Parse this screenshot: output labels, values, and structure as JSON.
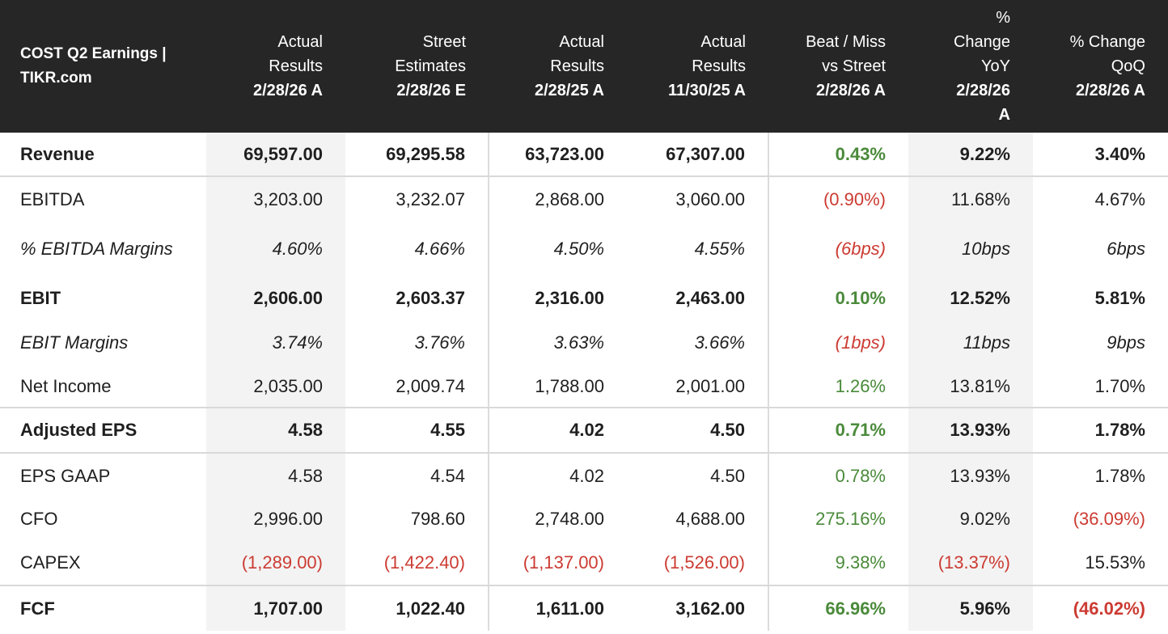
{
  "colors": {
    "header_bg": "#262626",
    "positive": "#4a8a3a",
    "negative": "#cc3b32",
    "shade": "#f3f3f3"
  },
  "header": {
    "title_line1": "COST Q2 Earnings |",
    "title_line2": "TIKR.com",
    "columns": [
      {
        "line1": "Actual",
        "line2": "Results",
        "date": "2/28/26 A"
      },
      {
        "line1": "Street",
        "line2": "Estimates",
        "date": "2/28/26 E"
      },
      {
        "line1": "Actual",
        "line2": "Results",
        "date": "2/28/25 A"
      },
      {
        "line1": "Actual",
        "line2": "Results",
        "date": "11/30/25 A"
      },
      {
        "line1": "Beat / Miss",
        "line2": "vs Street",
        "date": "2/28/26 A"
      },
      {
        "line1": "%",
        "line2": "Change",
        "line3": "YoY",
        "date1": "2/28/26",
        "date2": "A"
      },
      {
        "line1": "% Change",
        "line2": "QoQ",
        "date": "2/28/26 A"
      }
    ]
  },
  "rows": [
    {
      "label": "Revenue",
      "values": [
        "69,597.00",
        "69,295.58",
        "63,723.00",
        "67,307.00",
        "0.43%",
        "9.22%",
        "3.40%"
      ]
    },
    {
      "label": "EBITDA",
      "values": [
        "3,203.00",
        "3,232.07",
        "2,868.00",
        "3,060.00",
        "(0.90%)",
        "11.68%",
        "4.67%"
      ]
    },
    {
      "label": "% EBITDA Margins",
      "values": [
        "4.60%",
        "4.66%",
        "4.50%",
        "4.55%",
        "(6bps)",
        "10bps",
        "6bps"
      ]
    },
    {
      "label": "EBIT",
      "values": [
        "2,606.00",
        "2,603.37",
        "2,316.00",
        "2,463.00",
        "0.10%",
        "12.52%",
        "5.81%"
      ]
    },
    {
      "label": "EBIT Margins",
      "values": [
        "3.74%",
        "3.76%",
        "3.63%",
        "3.66%",
        "(1bps)",
        "11bps",
        "9bps"
      ]
    },
    {
      "label": "Net Income",
      "values": [
        "2,035.00",
        "2,009.74",
        "1,788.00",
        "2,001.00",
        "1.26%",
        "13.81%",
        "1.70%"
      ]
    },
    {
      "label": "Adjusted EPS",
      "values": [
        "4.58",
        "4.55",
        "4.02",
        "4.50",
        "0.71%",
        "13.93%",
        "1.78%"
      ]
    },
    {
      "label": "EPS GAAP",
      "values": [
        "4.58",
        "4.54",
        "4.02",
        "4.50",
        "0.78%",
        "13.93%",
        "1.78%"
      ]
    },
    {
      "label": "CFO",
      "values": [
        "2,996.00",
        "798.60",
        "2,748.00",
        "4,688.00",
        "275.16%",
        "9.02%",
        "(36.09%)"
      ]
    },
    {
      "label": "CAPEX",
      "values": [
        "(1,289.00)",
        "(1,422.40)",
        "(1,137.00)",
        "(1,526.00)",
        "9.38%",
        "(13.37%)",
        "15.53%"
      ]
    },
    {
      "label": "FCF",
      "values": [
        "1,707.00",
        "1,022.40",
        "1,611.00",
        "3,162.00",
        "66.96%",
        "5.96%",
        "(46.02%)"
      ]
    }
  ]
}
